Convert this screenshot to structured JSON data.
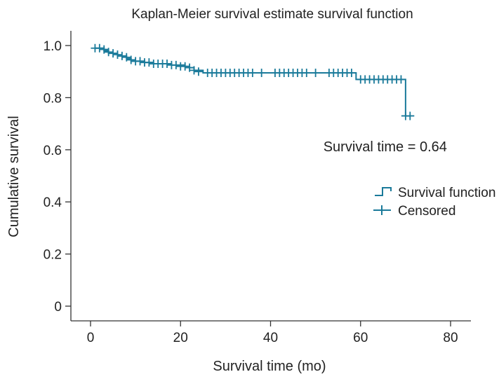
{
  "chart_data": {
    "type": "line",
    "title": "Kaplan-Meier survival estimate survival function",
    "xlabel": "Survival time (mo)",
    "ylabel": "Cumulative survival",
    "xlim": [
      0,
      80
    ],
    "ylim": [
      0,
      1.0
    ],
    "x_ticks": [
      0,
      20,
      40,
      60,
      80
    ],
    "x_tick_labels": [
      "0",
      "20",
      "40",
      "60",
      "80"
    ],
    "y_ticks": [
      0,
      0.2,
      0.4,
      0.6,
      0.8,
      1.0
    ],
    "y_tick_labels": [
      "0",
      "0.2",
      "0.4",
      "0.6",
      "0.8",
      "1.0"
    ],
    "grid": false,
    "line_color": "#1a7a9a",
    "series": [
      {
        "name": "Survival function",
        "steps": [
          [
            1,
            0.99
          ],
          [
            3,
            0.98
          ],
          [
            4,
            0.97
          ],
          [
            6,
            0.96
          ],
          [
            8,
            0.95
          ],
          [
            9,
            0.94
          ],
          [
            12,
            0.935
          ],
          [
            14,
            0.93
          ],
          [
            18,
            0.925
          ],
          [
            21,
            0.92
          ],
          [
            22,
            0.915
          ],
          [
            23,
            0.905
          ],
          [
            25,
            0.895
          ],
          [
            59,
            0.87
          ],
          [
            70,
            0.73
          ],
          [
            71,
            0.73
          ]
        ]
      },
      {
        "name": "Censored",
        "marks": [
          [
            1,
            0.99
          ],
          [
            2,
            0.99
          ],
          [
            3,
            0.985
          ],
          [
            4,
            0.975
          ],
          [
            5,
            0.97
          ],
          [
            6,
            0.965
          ],
          [
            7,
            0.96
          ],
          [
            8,
            0.955
          ],
          [
            9,
            0.945
          ],
          [
            10,
            0.94
          ],
          [
            11,
            0.94
          ],
          [
            12,
            0.935
          ],
          [
            13,
            0.935
          ],
          [
            14,
            0.93
          ],
          [
            15,
            0.93
          ],
          [
            16,
            0.93
          ],
          [
            17,
            0.93
          ],
          [
            18,
            0.925
          ],
          [
            19,
            0.925
          ],
          [
            20,
            0.92
          ],
          [
            21,
            0.92
          ],
          [
            22,
            0.915
          ],
          [
            23,
            0.905
          ],
          [
            24,
            0.9
          ],
          [
            26,
            0.895
          ],
          [
            27,
            0.895
          ],
          [
            28,
            0.895
          ],
          [
            29,
            0.895
          ],
          [
            30,
            0.895
          ],
          [
            31,
            0.895
          ],
          [
            32,
            0.895
          ],
          [
            33,
            0.895
          ],
          [
            34,
            0.895
          ],
          [
            35,
            0.895
          ],
          [
            36,
            0.895
          ],
          [
            38,
            0.895
          ],
          [
            41,
            0.895
          ],
          [
            42,
            0.895
          ],
          [
            43,
            0.895
          ],
          [
            44,
            0.895
          ],
          [
            45,
            0.895
          ],
          [
            46,
            0.895
          ],
          [
            47,
            0.895
          ],
          [
            48,
            0.895
          ],
          [
            50,
            0.895
          ],
          [
            53,
            0.895
          ],
          [
            54,
            0.895
          ],
          [
            55,
            0.895
          ],
          [
            56,
            0.895
          ],
          [
            57,
            0.895
          ],
          [
            58,
            0.895
          ],
          [
            60,
            0.87
          ],
          [
            61,
            0.87
          ],
          [
            62,
            0.87
          ],
          [
            63,
            0.87
          ],
          [
            64,
            0.87
          ],
          [
            65,
            0.87
          ],
          [
            66,
            0.87
          ],
          [
            67,
            0.87
          ],
          [
            68,
            0.87
          ],
          [
            69,
            0.87
          ],
          [
            70,
            0.73
          ],
          [
            71,
            0.73
          ]
        ]
      }
    ],
    "legend": {
      "position": "right",
      "entries": [
        "Survival function",
        "Censored"
      ]
    },
    "annotations": [
      {
        "text": "Survival time = 0.64",
        "x": 65,
        "y": 0.64
      }
    ]
  }
}
